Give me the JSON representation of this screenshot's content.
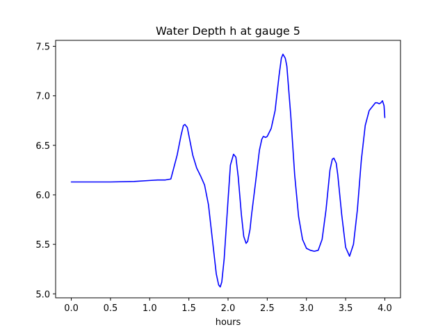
{
  "chart_data": {
    "type": "line",
    "title": "Water Depth h at gauge 5",
    "xlabel": "hours",
    "ylabel": "",
    "xlim": [
      -0.2,
      4.2
    ],
    "ylim": [
      4.96,
      7.56
    ],
    "x_ticks": [
      0.0,
      0.5,
      1.0,
      1.5,
      2.0,
      2.5,
      3.0,
      3.5,
      4.0
    ],
    "x_tick_labels": [
      "0.0",
      "0.5",
      "1.0",
      "1.5",
      "2.0",
      "2.5",
      "3.0",
      "3.5",
      "4.0"
    ],
    "y_ticks": [
      5.0,
      5.5,
      6.0,
      6.5,
      7.0,
      7.5
    ],
    "y_tick_labels": [
      "5.0",
      "5.5",
      "6.0",
      "6.5",
      "7.0",
      "7.5"
    ],
    "grid": false,
    "legend": "none",
    "series": [
      {
        "color": "#0000ff",
        "x": [
          0.0,
          0.5,
          0.8,
          1.0,
          1.1,
          1.2,
          1.27,
          1.3,
          1.35,
          1.4,
          1.43,
          1.45,
          1.48,
          1.5,
          1.55,
          1.6,
          1.65,
          1.7,
          1.75,
          1.8,
          1.85,
          1.88,
          1.9,
          1.92,
          1.95,
          2.0,
          2.03,
          2.07,
          2.1,
          2.13,
          2.17,
          2.2,
          2.23,
          2.25,
          2.28,
          2.3,
          2.35,
          2.4,
          2.43,
          2.45,
          2.48,
          2.5,
          2.55,
          2.6,
          2.65,
          2.68,
          2.7,
          2.73,
          2.75,
          2.8,
          2.85,
          2.9,
          2.95,
          3.0,
          3.05,
          3.1,
          3.15,
          3.2,
          3.25,
          3.3,
          3.33,
          3.35,
          3.38,
          3.4,
          3.45,
          3.5,
          3.55,
          3.6,
          3.65,
          3.7,
          3.75,
          3.8,
          3.85,
          3.88,
          3.9,
          3.93,
          3.95,
          3.97,
          3.99,
          4.0
        ],
        "y": [
          6.13,
          6.13,
          6.135,
          6.145,
          6.15,
          6.15,
          6.16,
          6.25,
          6.4,
          6.6,
          6.7,
          6.71,
          6.68,
          6.6,
          6.4,
          6.27,
          6.19,
          6.1,
          5.9,
          5.55,
          5.2,
          5.09,
          5.07,
          5.12,
          5.35,
          5.95,
          6.3,
          6.41,
          6.38,
          6.18,
          5.8,
          5.58,
          5.51,
          5.53,
          5.65,
          5.8,
          6.12,
          6.45,
          6.56,
          6.59,
          6.58,
          6.59,
          6.67,
          6.85,
          7.2,
          7.38,
          7.42,
          7.38,
          7.3,
          6.8,
          6.2,
          5.78,
          5.55,
          5.46,
          5.44,
          5.43,
          5.44,
          5.55,
          5.85,
          6.25,
          6.36,
          6.37,
          6.32,
          6.2,
          5.8,
          5.47,
          5.38,
          5.5,
          5.85,
          6.35,
          6.7,
          6.85,
          6.9,
          6.93,
          6.93,
          6.92,
          6.93,
          6.95,
          6.9,
          6.78
        ]
      }
    ]
  }
}
